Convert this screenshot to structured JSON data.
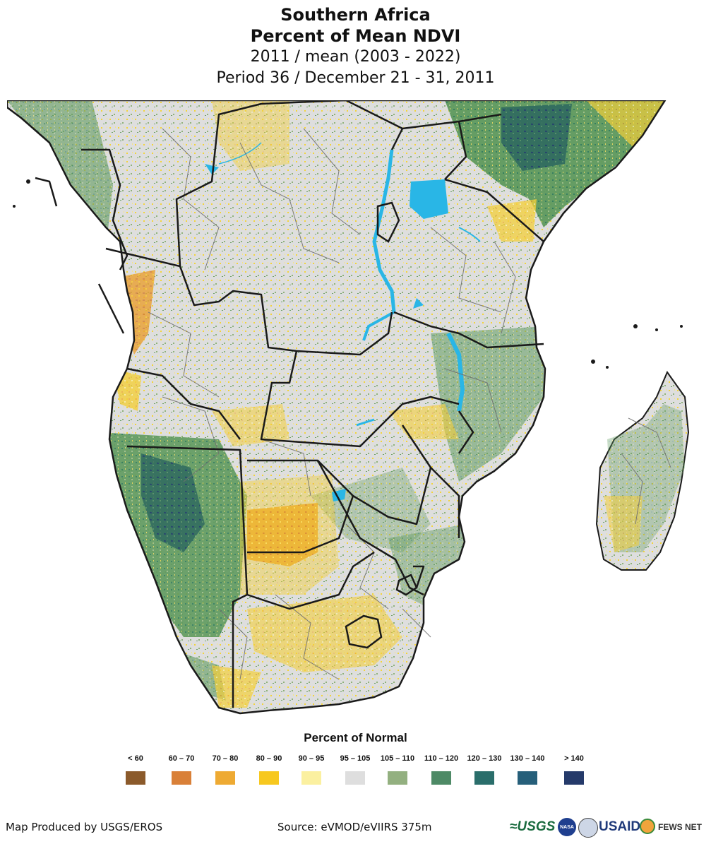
{
  "title": {
    "line1": "Southern Africa",
    "line2": "Percent of Mean NDVI",
    "line3": "2011 / mean (2003 - 2022)",
    "line4": "Period 36 / December 21 - 31, 2011"
  },
  "map": {
    "region": "Southern Africa",
    "colors": {
      "land_normal": "#dddddd",
      "water": "#29b6e6",
      "border": "#1a1a1a",
      "admin": "#707070"
    }
  },
  "legend": {
    "title": "Percent of Normal",
    "classes": [
      {
        "label": "< 60",
        "color": "#8b5a2b"
      },
      {
        "label": "60 – 70",
        "color": "#d98038"
      },
      {
        "label": "70 – 80",
        "color": "#eeaa33"
      },
      {
        "label": "80 – 90",
        "color": "#f7c81f"
      },
      {
        "label": "90 – 95",
        "color": "#fbf0a0"
      },
      {
        "label": "95 – 105",
        "color": "#dedede"
      },
      {
        "label": "105 – 110",
        "color": "#93b080"
      },
      {
        "label": "110 – 120",
        "color": "#4e8a66"
      },
      {
        "label": "120 – 130",
        "color": "#2a6e6b"
      },
      {
        "label": "130 – 140",
        "color": "#265f7a"
      },
      {
        "label": "> 140",
        "color": "#253a6a"
      }
    ]
  },
  "footer": {
    "credit": "Map Produced by USGS/EROS",
    "source": "Source: eVMOD/eVIIRS 375m",
    "logos": {
      "usgs": "≈USGS",
      "nasa": "NASA",
      "usaid": "USAID",
      "fews": "FEWS NET"
    }
  }
}
